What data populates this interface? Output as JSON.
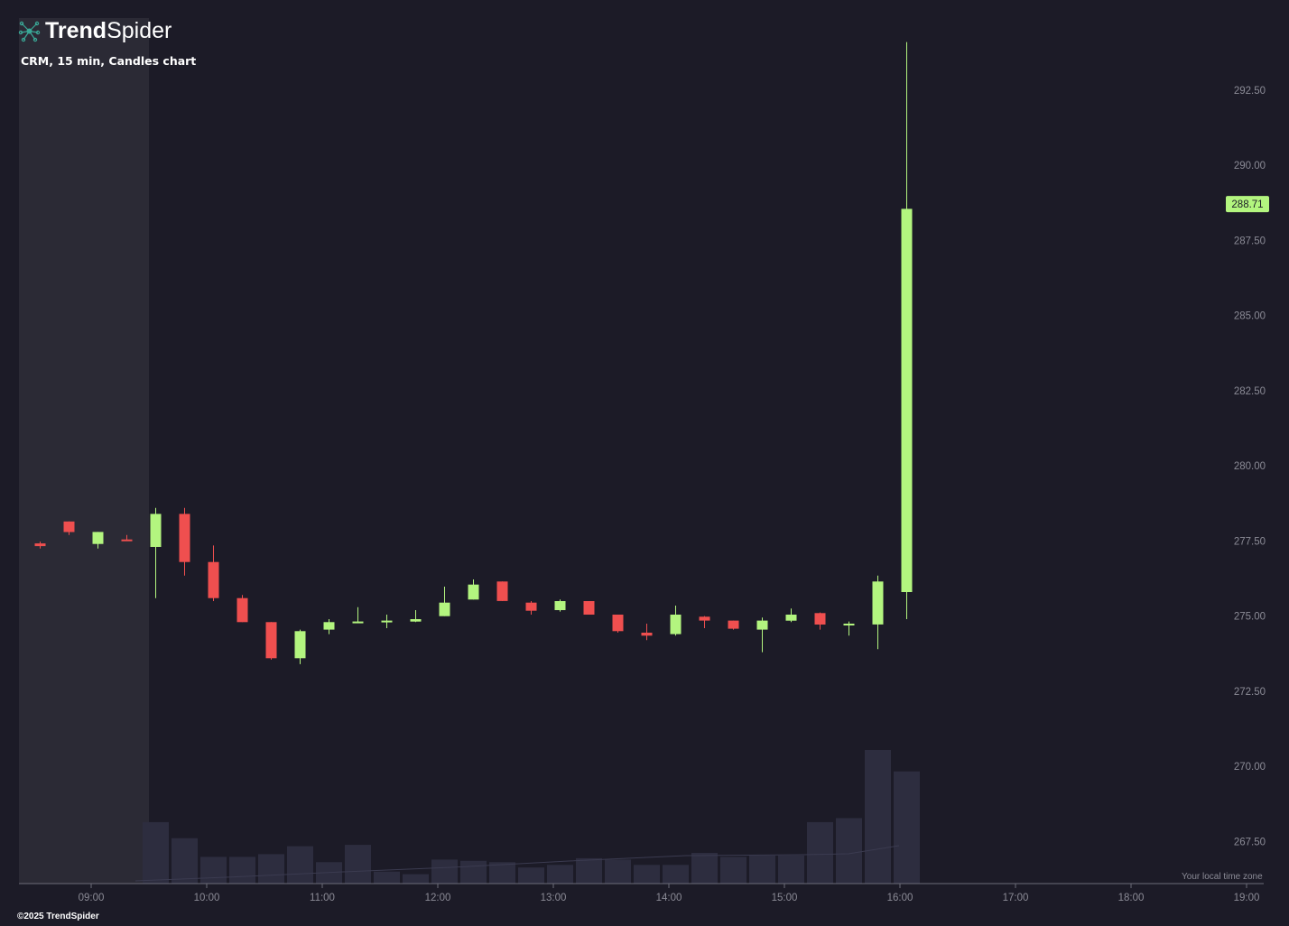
{
  "brand": {
    "name_strong": "Trend",
    "name_light": "Spider",
    "copyright": "©2025 TrendSpider"
  },
  "chart_title": "CRM, 15 min, Candles chart",
  "timezone_note": "Your local time zone",
  "colors": {
    "background": "#1c1b27",
    "premarket_shade": "#2b2a35",
    "up": "#b3f57f",
    "down": "#ef4f4f",
    "volume": "#2d2d3f",
    "axis_text": "#8b8b96",
    "axis_line": "#6c6c78",
    "price_badge_bg": "#b3f57f",
    "price_badge_text": "#1c1b27"
  },
  "chart_data": {
    "type": "candlestick",
    "symbol": "CRM",
    "interval": "15 min",
    "current_price": 288.71,
    "current_price_label": "288.71",
    "premarket_end": "09:30",
    "ylim": [
      266.1,
      294.9
    ],
    "x_axis_ticks": [
      "09:00",
      "10:00",
      "11:00",
      "12:00",
      "13:00",
      "14:00",
      "15:00",
      "16:00",
      "17:00",
      "18:00",
      "19:00"
    ],
    "y_axis_ticks": [
      {
        "value": 267.5,
        "label": "267.50"
      },
      {
        "value": 270.0,
        "label": "270.00"
      },
      {
        "value": 272.5,
        "label": "272.50"
      },
      {
        "value": 275.0,
        "label": "275.00"
      },
      {
        "value": 277.5,
        "label": "277.50"
      },
      {
        "value": 280.0,
        "label": "280.00"
      },
      {
        "value": 282.5,
        "label": "282.50"
      },
      {
        "value": 285.0,
        "label": "285.00"
      },
      {
        "value": 287.5,
        "label": "287.50"
      },
      {
        "value": 290.0,
        "label": "290.00"
      },
      {
        "value": 292.5,
        "label": "292.50"
      }
    ],
    "candles": [
      {
        "time": "08:30",
        "open": 277.42,
        "high": 277.48,
        "low": 277.25,
        "close": 277.33
      },
      {
        "time": "08:45",
        "open": 278.15,
        "high": 278.15,
        "low": 277.7,
        "close": 277.8
      },
      {
        "time": "09:00",
        "open": 277.4,
        "high": 277.8,
        "low": 277.25,
        "close": 277.8
      },
      {
        "time": "09:15",
        "open": 277.55,
        "high": 277.7,
        "low": 277.5,
        "close": 277.52
      },
      {
        "time": "09:30",
        "open": 277.3,
        "high": 278.6,
        "low": 275.6,
        "close": 278.4
      },
      {
        "time": "09:45",
        "open": 278.4,
        "high": 278.6,
        "low": 276.35,
        "close": 276.8
      },
      {
        "time": "10:00",
        "open": 276.8,
        "high": 277.35,
        "low": 275.5,
        "close": 275.6
      },
      {
        "time": "10:15",
        "open": 275.6,
        "high": 275.7,
        "low": 274.8,
        "close": 274.8
      },
      {
        "time": "10:30",
        "open": 274.8,
        "high": 274.8,
        "low": 273.55,
        "close": 273.6
      },
      {
        "time": "10:45",
        "open": 273.6,
        "high": 274.55,
        "low": 273.4,
        "close": 274.5
      },
      {
        "time": "11:00",
        "open": 274.55,
        "high": 274.9,
        "low": 274.4,
        "close": 274.8
      },
      {
        "time": "11:15",
        "open": 274.78,
        "high": 275.3,
        "low": 274.78,
        "close": 274.82
      },
      {
        "time": "11:30",
        "open": 274.82,
        "high": 275.05,
        "low": 274.6,
        "close": 274.85
      },
      {
        "time": "11:45",
        "open": 274.82,
        "high": 275.2,
        "low": 274.8,
        "close": 274.9
      },
      {
        "time": "12:00",
        "open": 275.0,
        "high": 275.98,
        "low": 275.0,
        "close": 275.45
      },
      {
        "time": "12:15",
        "open": 275.55,
        "high": 276.22,
        "low": 275.55,
        "close": 276.05
      },
      {
        "time": "12:30",
        "open": 276.15,
        "high": 276.15,
        "low": 275.5,
        "close": 275.5
      },
      {
        "time": "12:45",
        "open": 275.45,
        "high": 275.5,
        "low": 275.05,
        "close": 275.18
      },
      {
        "time": "13:00",
        "open": 275.2,
        "high": 275.55,
        "low": 275.15,
        "close": 275.5
      },
      {
        "time": "13:15",
        "open": 275.5,
        "high": 275.5,
        "low": 275.05,
        "close": 275.05
      },
      {
        "time": "13:30",
        "open": 275.05,
        "high": 275.05,
        "low": 274.45,
        "close": 274.5
      },
      {
        "time": "13:45",
        "open": 274.45,
        "high": 274.75,
        "low": 274.2,
        "close": 274.35
      },
      {
        "time": "14:00",
        "open": 274.4,
        "high": 275.35,
        "low": 274.35,
        "close": 275.05
      },
      {
        "time": "14:15",
        "open": 274.98,
        "high": 275.0,
        "low": 274.6,
        "close": 274.85
      },
      {
        "time": "14:30",
        "open": 274.85,
        "high": 274.85,
        "low": 274.55,
        "close": 274.58
      },
      {
        "time": "14:45",
        "open": 274.55,
        "high": 274.95,
        "low": 273.8,
        "close": 274.85
      },
      {
        "time": "15:00",
        "open": 274.85,
        "high": 275.25,
        "low": 274.8,
        "close": 275.05
      },
      {
        "time": "15:15",
        "open": 275.1,
        "high": 275.12,
        "low": 274.55,
        "close": 274.72
      },
      {
        "time": "15:30",
        "open": 274.75,
        "high": 274.82,
        "low": 274.35,
        "close": 274.75
      },
      {
        "time": "15:45",
        "open": 274.72,
        "high": 276.35,
        "low": 273.9,
        "close": 276.15
      },
      {
        "time": "16:00",
        "open": 275.8,
        "high": 294.1,
        "low": 274.9,
        "close": 288.55
      }
    ],
    "volume": [
      {
        "time": "09:30",
        "relative": 0.46
      },
      {
        "time": "09:45",
        "relative": 0.34
      },
      {
        "time": "10:00",
        "relative": 0.2
      },
      {
        "time": "10:15",
        "relative": 0.2
      },
      {
        "time": "10:30",
        "relative": 0.22
      },
      {
        "time": "10:45",
        "relative": 0.28
      },
      {
        "time": "11:00",
        "relative": 0.16
      },
      {
        "time": "11:15",
        "relative": 0.29
      },
      {
        "time": "11:30",
        "relative": 0.09
      },
      {
        "time": "11:45",
        "relative": 0.07
      },
      {
        "time": "12:00",
        "relative": 0.18
      },
      {
        "time": "12:15",
        "relative": 0.17
      },
      {
        "time": "12:30",
        "relative": 0.16
      },
      {
        "time": "12:45",
        "relative": 0.12
      },
      {
        "time": "13:00",
        "relative": 0.14
      },
      {
        "time": "13:15",
        "relative": 0.19
      },
      {
        "time": "13:30",
        "relative": 0.18
      },
      {
        "time": "13:45",
        "relative": 0.14
      },
      {
        "time": "14:00",
        "relative": 0.14
      },
      {
        "time": "14:15",
        "relative": 0.23
      },
      {
        "time": "14:30",
        "relative": 0.2
      },
      {
        "time": "14:45",
        "relative": 0.21
      },
      {
        "time": "15:00",
        "relative": 0.21
      },
      {
        "time": "15:15",
        "relative": 0.46
      },
      {
        "time": "15:30",
        "relative": 0.49
      },
      {
        "time": "15:45",
        "relative": 1.0
      },
      {
        "time": "16:00",
        "relative": 0.84
      }
    ]
  }
}
